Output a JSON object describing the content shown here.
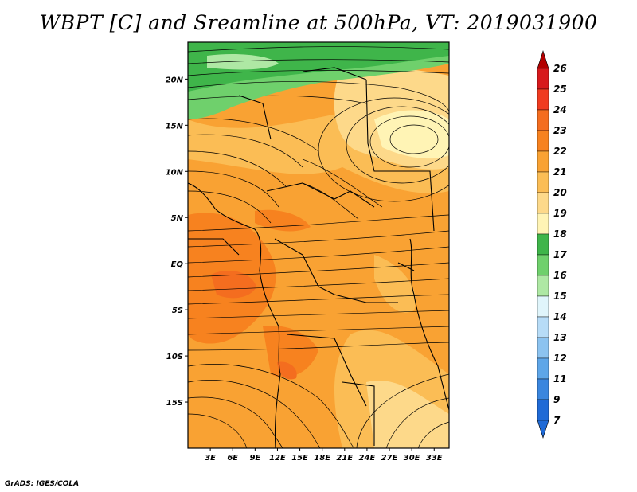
{
  "title": "WBPT [C] and Sreamline at 500hPa, VT: 2019031900",
  "credit": "GrADS: IGES/COLA",
  "map": {
    "lon_range": [
      0,
      35
    ],
    "lat_range": [
      -20,
      24
    ],
    "lon_ticks": [
      {
        "v": 3,
        "label": "3E"
      },
      {
        "v": 6,
        "label": "6E"
      },
      {
        "v": 9,
        "label": "9E"
      },
      {
        "v": 12,
        "label": "12E"
      },
      {
        "v": 15,
        "label": "15E"
      },
      {
        "v": 18,
        "label": "18E"
      },
      {
        "v": 21,
        "label": "21E"
      },
      {
        "v": 24,
        "label": "24E"
      },
      {
        "v": 27,
        "label": "27E"
      },
      {
        "v": 30,
        "label": "30E"
      },
      {
        "v": 33,
        "label": "33E"
      }
    ],
    "lat_ticks": [
      {
        "v": 20,
        "label": "20N"
      },
      {
        "v": 15,
        "label": "15N"
      },
      {
        "v": 10,
        "label": "10N"
      },
      {
        "v": 5,
        "label": "5N"
      },
      {
        "v": 0,
        "label": "EQ"
      },
      {
        "v": -5,
        "label": "5S"
      },
      {
        "v": -10,
        "label": "10S"
      },
      {
        "v": -15,
        "label": "15S"
      }
    ]
  },
  "colorbar": {
    "levels": [
      "26",
      "25",
      "24",
      "23",
      "22",
      "21",
      "20",
      "19",
      "18",
      "17",
      "16",
      "15",
      "14",
      "13",
      "12",
      "11",
      "9",
      "7"
    ],
    "colors": [
      "#b30000",
      "#d7191c",
      "#f03b20",
      "#f46d1f",
      "#f7821f",
      "#f9a233",
      "#fbbd55",
      "#fdd98a",
      "#fff4b5",
      "#3fb54a",
      "#6fd06c",
      "#aee8a4",
      "#e0f5fb",
      "#b7dcf7",
      "#8cc3f0",
      "#5ea6e8",
      "#3a86de",
      "#1f6ad6"
    ],
    "top_color": "#b30000",
    "bottom_color": "#1f6ad6"
  }
}
